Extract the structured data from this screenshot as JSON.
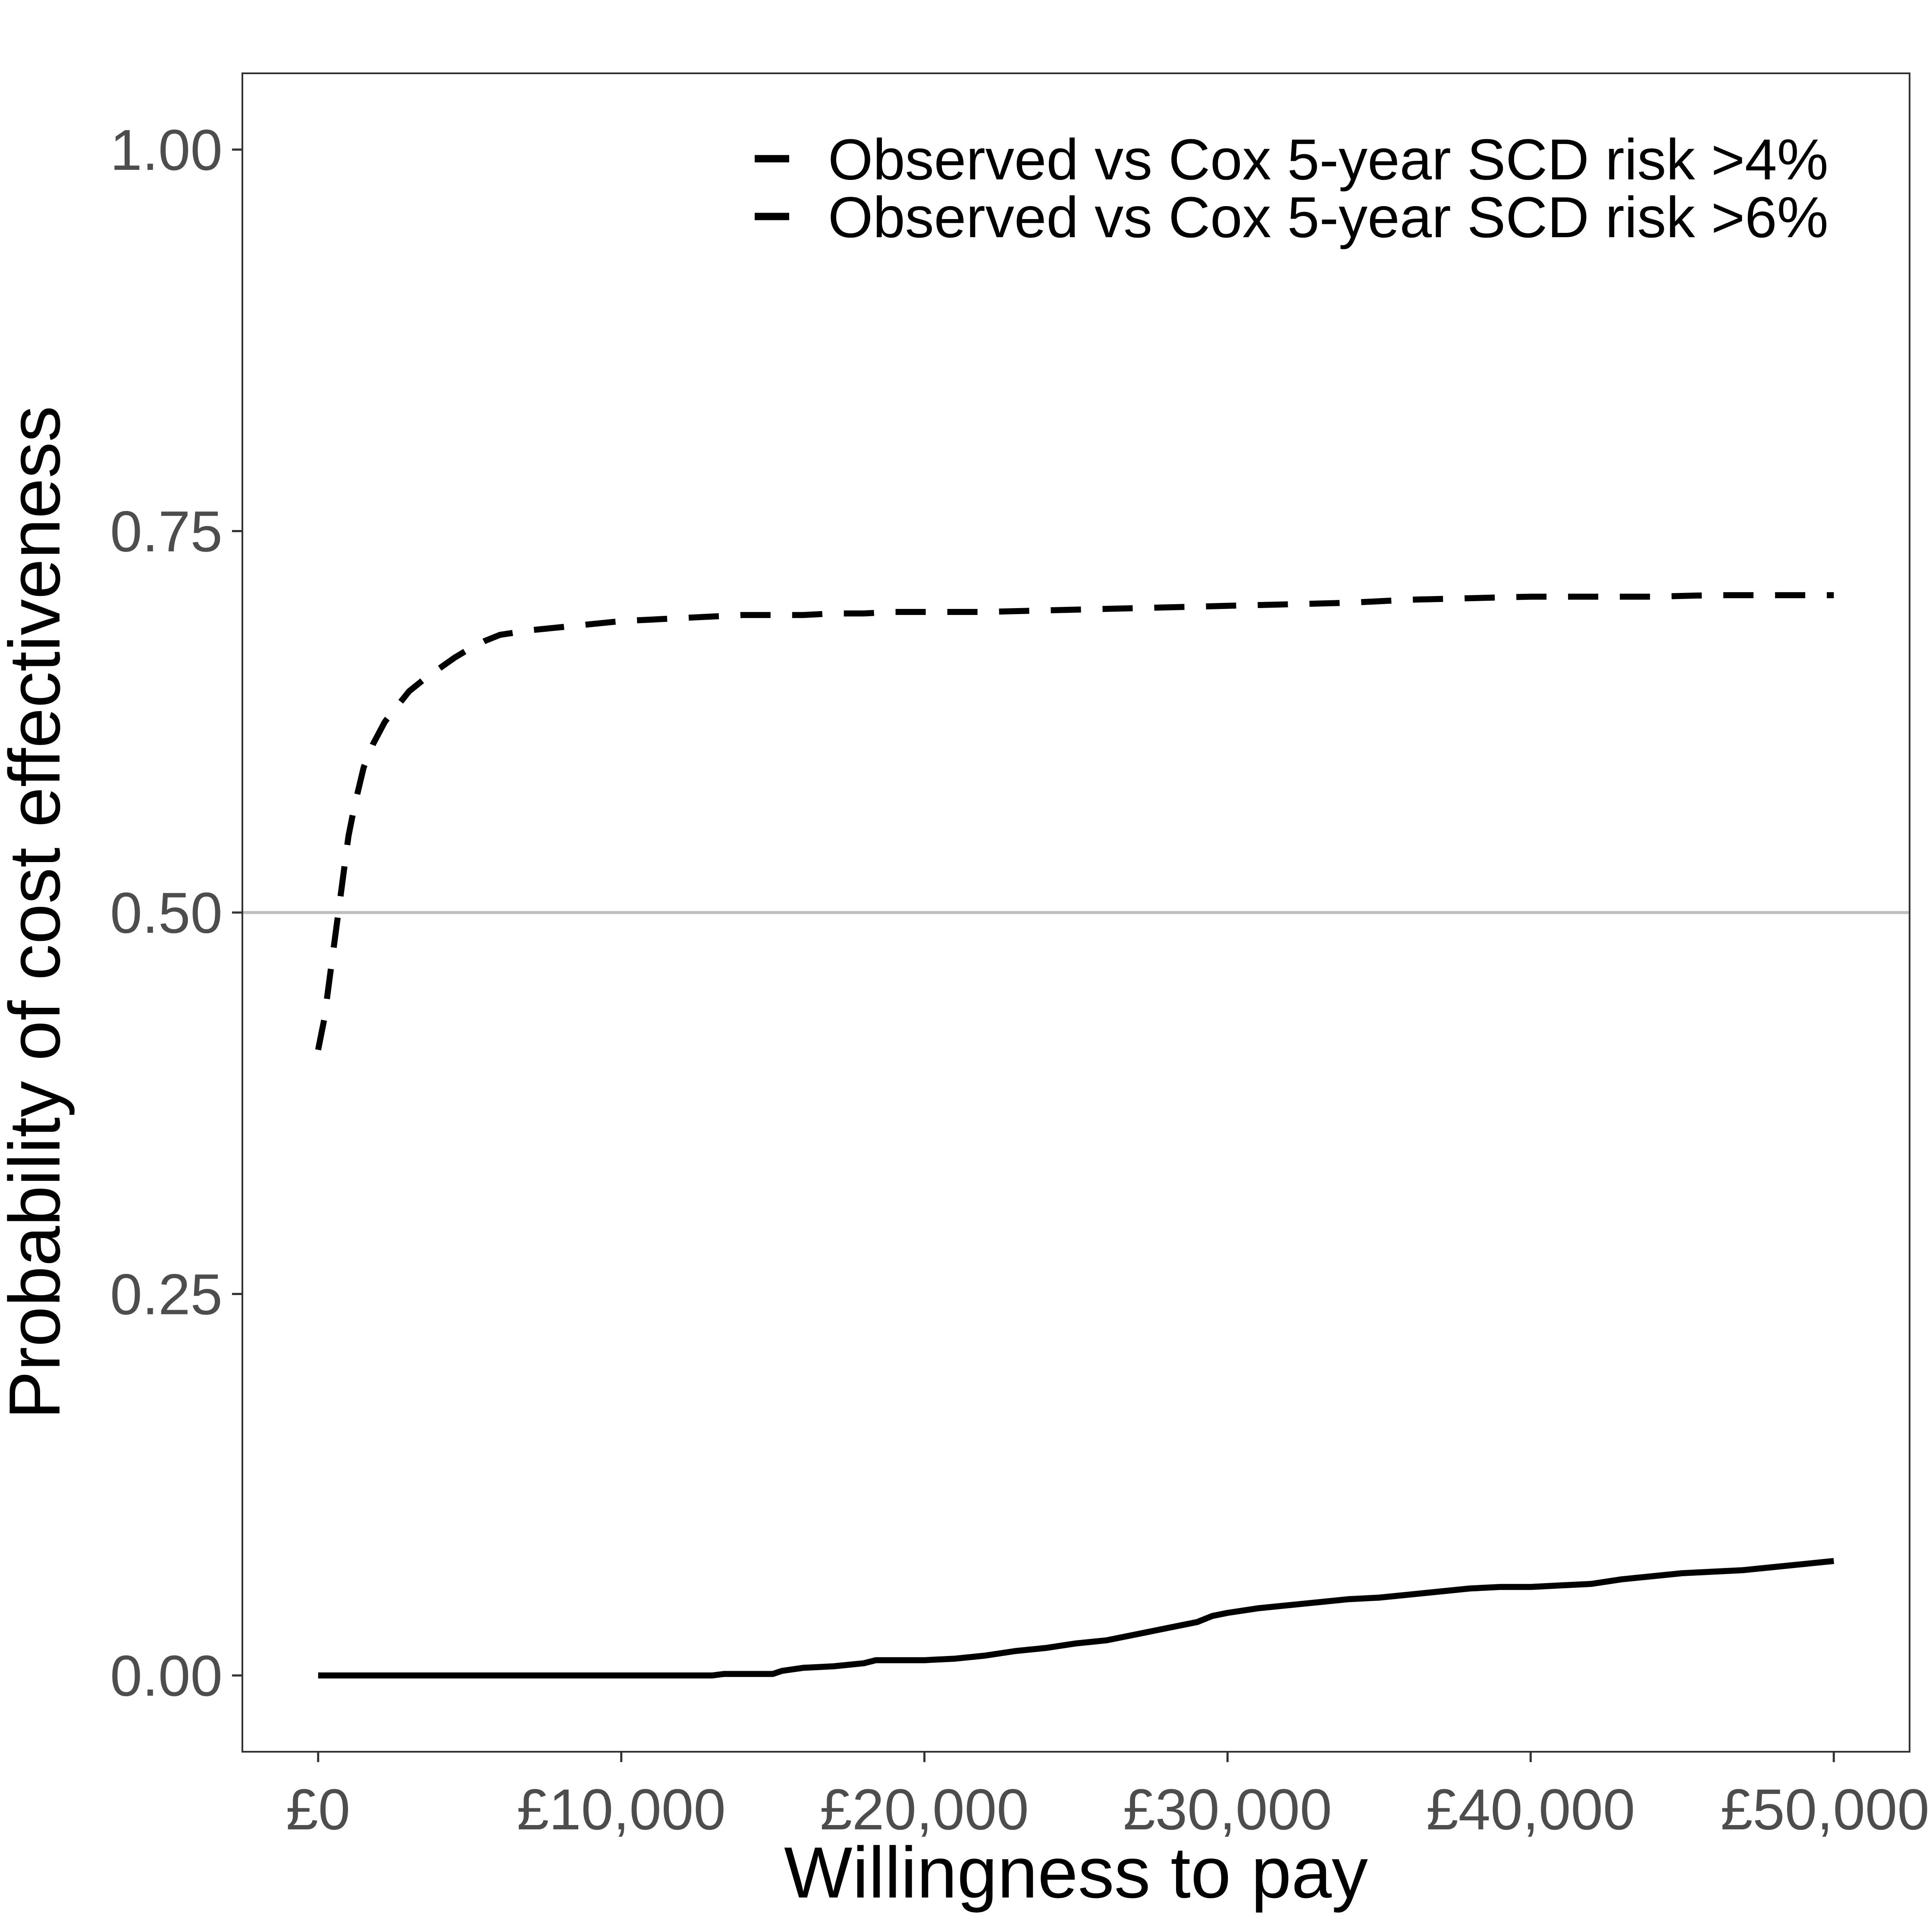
{
  "chart_data": {
    "type": "line",
    "title": "",
    "xlabel": "Willingness to pay",
    "ylabel": "Probability of cost effectiveness",
    "xlim": [
      -2500,
      52500
    ],
    "ylim": [
      -0.05,
      1.05
    ],
    "x_ticks": [
      {
        "value": 0,
        "label": "£0"
      },
      {
        "value": 10000,
        "label": "£10,000"
      },
      {
        "value": 20000,
        "label": "£20,000"
      },
      {
        "value": 30000,
        "label": "£30,000"
      },
      {
        "value": 40000,
        "label": "£40,000"
      },
      {
        "value": 50000,
        "label": "£50,000"
      }
    ],
    "y_ticks": [
      {
        "value": 0.0,
        "label": "0.00"
      },
      {
        "value": 0.25,
        "label": "0.25"
      },
      {
        "value": 0.5,
        "label": "0.50"
      },
      {
        "value": 0.75,
        "label": "0.75"
      },
      {
        "value": 1.0,
        "label": "1.00"
      }
    ],
    "reference_line": {
      "y": 0.5,
      "color": "#bebebe"
    },
    "grid": false,
    "legend_position": "top-right",
    "series": [
      {
        "name": "Observed vs Cox 5-year SCD risk >4%",
        "style": "dashed",
        "color": "#000000",
        "x": [
          0,
          200,
          400,
          600,
          800,
          1000,
          1200,
          1500,
          1800,
          2200,
          2600,
          3000,
          3500,
          4000,
          4500,
          5000,
          5500,
          6000,
          7000,
          8000,
          9000,
          10000,
          11000,
          12000,
          13000,
          14000,
          15000,
          16000,
          17000,
          18000,
          19000,
          20000,
          22000,
          24000,
          26000,
          28000,
          30000,
          32000,
          34000,
          36000,
          38000,
          40000,
          42000,
          44000,
          46000,
          48000,
          50000
        ],
        "y": [
          0.41,
          0.43,
          0.46,
          0.49,
          0.52,
          0.55,
          0.57,
          0.595,
          0.61,
          0.625,
          0.635,
          0.645,
          0.653,
          0.66,
          0.667,
          0.673,
          0.678,
          0.682,
          0.685,
          0.687,
          0.689,
          0.691,
          0.692,
          0.693,
          0.694,
          0.695,
          0.695,
          0.695,
          0.696,
          0.696,
          0.697,
          0.697,
          0.697,
          0.698,
          0.699,
          0.7,
          0.701,
          0.702,
          0.703,
          0.705,
          0.706,
          0.707,
          0.707,
          0.707,
          0.708,
          0.708,
          0.708
        ]
      },
      {
        "name": "Observed vs Cox 5-year SCD risk >6%",
        "style": "solid",
        "color": "#000000",
        "x": [
          0,
          5000,
          10000,
          13000,
          13400,
          15000,
          15300,
          16000,
          17000,
          18000,
          18400,
          20000,
          21000,
          22000,
          23000,
          24000,
          25000,
          26000,
          27000,
          28000,
          29000,
          29500,
          30000,
          31000,
          32000,
          33000,
          34000,
          35000,
          36000,
          37000,
          38000,
          39000,
          40000,
          41000,
          42000,
          43000,
          44000,
          45000,
          46000,
          47000,
          48000,
          49000,
          50000
        ],
        "y": [
          0.0,
          0.0,
          0.0,
          0.0,
          0.001,
          0.001,
          0.003,
          0.005,
          0.006,
          0.008,
          0.01,
          0.01,
          0.011,
          0.013,
          0.016,
          0.018,
          0.021,
          0.023,
          0.027,
          0.031,
          0.035,
          0.039,
          0.041,
          0.044,
          0.046,
          0.048,
          0.05,
          0.051,
          0.053,
          0.055,
          0.057,
          0.058,
          0.058,
          0.059,
          0.06,
          0.063,
          0.065,
          0.067,
          0.068,
          0.069,
          0.071,
          0.073,
          0.075
        ]
      }
    ]
  }
}
